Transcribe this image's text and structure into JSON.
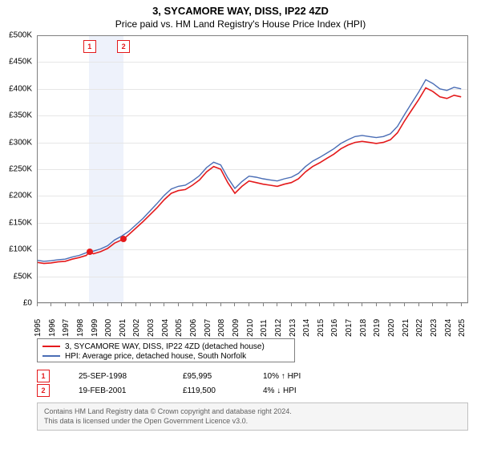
{
  "title": "3, SYCAMORE WAY, DISS, IP22 4ZD",
  "subtitle": "Price paid vs. HM Land Registry's House Price Index (HPI)",
  "chart": {
    "type": "line",
    "background_color": "#ffffff",
    "grid_color": "#e6e6e6",
    "border_color": "#808080",
    "x_start": 1995,
    "x_end": 2025.5,
    "x_ticks": [
      1995,
      1996,
      1997,
      1998,
      1999,
      2000,
      2001,
      2002,
      2003,
      2004,
      2005,
      2006,
      2007,
      2008,
      2009,
      2010,
      2011,
      2012,
      2013,
      2014,
      2015,
      2016,
      2017,
      2018,
      2019,
      2020,
      2021,
      2022,
      2023,
      2024,
      2025
    ],
    "y_min": 0,
    "y_max": 500000,
    "y_tick_step": 50000,
    "y_tick_labels": [
      "£0",
      "£50K",
      "£100K",
      "£150K",
      "£200K",
      "£250K",
      "£300K",
      "£350K",
      "£400K",
      "£450K",
      "£500K"
    ],
    "highlight_band": {
      "x_start": 1998.7,
      "x_end": 2001.15,
      "color": "#eef2fb"
    },
    "series": [
      {
        "name": "property",
        "label": "3, SYCAMORE WAY, DISS, IP22 4ZD (detached house)",
        "color": "#e41a1c",
        "line_width": 1.6,
        "points": [
          [
            1995,
            76000
          ],
          [
            1995.5,
            74000
          ],
          [
            1996,
            75000
          ],
          [
            1996.5,
            77000
          ],
          [
            1997,
            78000
          ],
          [
            1997.5,
            82000
          ],
          [
            1998,
            85000
          ],
          [
            1998.5,
            89000
          ],
          [
            1998.73,
            95995
          ],
          [
            1999,
            92000
          ],
          [
            1999.5,
            96000
          ],
          [
            2000,
            102000
          ],
          [
            2000.5,
            112000
          ],
          [
            2001.13,
            119500
          ],
          [
            2001.5,
            128000
          ],
          [
            2002,
            140000
          ],
          [
            2002.5,
            152000
          ],
          [
            2003,
            165000
          ],
          [
            2003.5,
            178000
          ],
          [
            2004,
            193000
          ],
          [
            2004.5,
            205000
          ],
          [
            2005,
            210000
          ],
          [
            2005.5,
            212000
          ],
          [
            2006,
            220000
          ],
          [
            2006.5,
            230000
          ],
          [
            2007,
            245000
          ],
          [
            2007.5,
            255000
          ],
          [
            2008,
            250000
          ],
          [
            2008.5,
            225000
          ],
          [
            2009,
            205000
          ],
          [
            2009.5,
            218000
          ],
          [
            2010,
            228000
          ],
          [
            2010.5,
            225000
          ],
          [
            2011,
            222000
          ],
          [
            2011.5,
            220000
          ],
          [
            2012,
            218000
          ],
          [
            2012.5,
            222000
          ],
          [
            2013,
            225000
          ],
          [
            2013.5,
            232000
          ],
          [
            2014,
            245000
          ],
          [
            2014.5,
            255000
          ],
          [
            2015,
            262000
          ],
          [
            2015.5,
            270000
          ],
          [
            2016,
            278000
          ],
          [
            2016.5,
            288000
          ],
          [
            2017,
            295000
          ],
          [
            2017.5,
            300000
          ],
          [
            2018,
            302000
          ],
          [
            2018.5,
            300000
          ],
          [
            2019,
            298000
          ],
          [
            2019.5,
            300000
          ],
          [
            2020,
            305000
          ],
          [
            2020.5,
            318000
          ],
          [
            2021,
            340000
          ],
          [
            2021.5,
            360000
          ],
          [
            2022,
            380000
          ],
          [
            2022.5,
            402000
          ],
          [
            2023,
            395000
          ],
          [
            2023.5,
            385000
          ],
          [
            2024,
            382000
          ],
          [
            2024.5,
            388000
          ],
          [
            2025,
            385000
          ]
        ]
      },
      {
        "name": "hpi",
        "label": "HPI: Average price, detached house, South Norfolk",
        "color": "#4a6db5",
        "line_width": 1.4,
        "points": [
          [
            1995,
            80000
          ],
          [
            1995.5,
            78000
          ],
          [
            1996,
            79000
          ],
          [
            1996.5,
            81000
          ],
          [
            1997,
            82000
          ],
          [
            1997.5,
            86000
          ],
          [
            1998,
            89000
          ],
          [
            1998.5,
            94000
          ],
          [
            1999,
            97000
          ],
          [
            1999.5,
            101000
          ],
          [
            2000,
            107000
          ],
          [
            2000.5,
            118000
          ],
          [
            2001,
            125000
          ],
          [
            2001.5,
            134000
          ],
          [
            2002,
            146000
          ],
          [
            2002.5,
            158000
          ],
          [
            2003,
            172000
          ],
          [
            2003.5,
            186000
          ],
          [
            2004,
            201000
          ],
          [
            2004.5,
            213000
          ],
          [
            2005,
            218000
          ],
          [
            2005.5,
            220000
          ],
          [
            2006,
            228000
          ],
          [
            2006.5,
            238000
          ],
          [
            2007,
            253000
          ],
          [
            2007.5,
            263000
          ],
          [
            2008,
            258000
          ],
          [
            2008.5,
            234000
          ],
          [
            2009,
            214000
          ],
          [
            2009.5,
            227000
          ],
          [
            2010,
            237000
          ],
          [
            2010.5,
            235000
          ],
          [
            2011,
            232000
          ],
          [
            2011.5,
            230000
          ],
          [
            2012,
            228000
          ],
          [
            2012.5,
            232000
          ],
          [
            2013,
            235000
          ],
          [
            2013.5,
            242000
          ],
          [
            2014,
            255000
          ],
          [
            2014.5,
            265000
          ],
          [
            2015,
            272000
          ],
          [
            2015.5,
            280000
          ],
          [
            2016,
            288000
          ],
          [
            2016.5,
            298000
          ],
          [
            2017,
            305000
          ],
          [
            2017.5,
            311000
          ],
          [
            2018,
            313000
          ],
          [
            2018.5,
            311000
          ],
          [
            2019,
            309000
          ],
          [
            2019.5,
            311000
          ],
          [
            2020,
            316000
          ],
          [
            2020.5,
            330000
          ],
          [
            2021,
            352000
          ],
          [
            2021.5,
            373000
          ],
          [
            2022,
            394000
          ],
          [
            2022.5,
            417000
          ],
          [
            2023,
            410000
          ],
          [
            2023.5,
            400000
          ],
          [
            2024,
            397000
          ],
          [
            2024.5,
            403000
          ],
          [
            2025,
            400000
          ]
        ]
      }
    ],
    "sale_markers": [
      {
        "n": "1",
        "x": 1998.73,
        "y": 95995,
        "color": "#e41a1c"
      },
      {
        "n": "2",
        "x": 2001.13,
        "y": 119500,
        "color": "#e41a1c"
      }
    ]
  },
  "legend": {
    "border_color": "#808080",
    "items": [
      {
        "color": "#e41a1c",
        "label": "3, SYCAMORE WAY, DISS, IP22 4ZD (detached house)"
      },
      {
        "color": "#4a6db5",
        "label": "HPI: Average price, detached house, South Norfolk"
      }
    ]
  },
  "sales": [
    {
      "n": "1",
      "color": "#e41a1c",
      "date": "25-SEP-1998",
      "price": "£95,995",
      "pct": "10%",
      "arrow": "↑",
      "vs": "HPI"
    },
    {
      "n": "2",
      "color": "#e41a1c",
      "date": "19-FEB-2001",
      "price": "£119,500",
      "pct": "4%",
      "arrow": "↓",
      "vs": "HPI"
    }
  ],
  "attribution": {
    "line1": "Contains HM Land Registry data © Crown copyright and database right 2024.",
    "line2": "This data is licensed under the Open Government Licence v3.0."
  }
}
